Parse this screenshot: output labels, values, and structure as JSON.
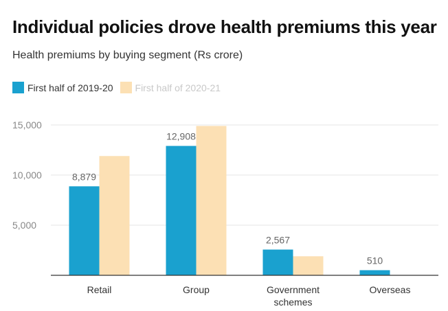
{
  "title": "Individual policies drove health premiums this year",
  "subtitle": "Health premiums by buying segment (Rs crore)",
  "colors": {
    "series1": "#1aa1cf",
    "series2": "#fce0b4",
    "grid": "#e6e6e6",
    "axis": "#333333"
  },
  "chart_data": {
    "type": "bar",
    "title": "Individual policies drove health premiums this year",
    "subtitle": "Health premiums by buying segment (Rs crore)",
    "categories": [
      [
        "Retail"
      ],
      [
        "Group"
      ],
      [
        "Government",
        "schemes"
      ],
      [
        "Overseas"
      ]
    ],
    "series": [
      {
        "name": "First half of 2019-20",
        "values": [
          8879,
          12908,
          2567,
          510
        ],
        "labels": [
          "8,879",
          "12,908",
          "2,567",
          "510"
        ],
        "color": "#1aa1cf"
      },
      {
        "name": "First half of 2020-21",
        "values": [
          11900,
          14900,
          1900,
          20
        ],
        "labels": [
          "",
          "",
          "",
          ""
        ],
        "color": "#fce0b4"
      }
    ],
    "yticks": [
      5000,
      10000,
      15000
    ],
    "ytick_labels": [
      "5,000",
      "10,000",
      "15,000"
    ],
    "ylim": [
      0,
      15000
    ],
    "grid": true,
    "legend": "top-left"
  }
}
